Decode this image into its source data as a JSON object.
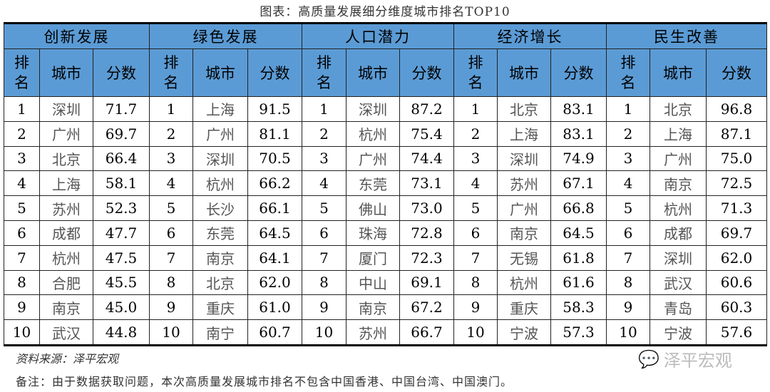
{
  "title": "图表：高质量发展细分维度城市排名TOP10",
  "sub_headers": {
    "rank": "排名",
    "city": "城市",
    "score": "分数"
  },
  "groups": [
    {
      "name": "创新发展",
      "rows": [
        [
          "1",
          "深圳",
          "71.7"
        ],
        [
          "2",
          "广州",
          "69.7"
        ],
        [
          "3",
          "北京",
          "66.4"
        ],
        [
          "4",
          "上海",
          "58.1"
        ],
        [
          "5",
          "苏州",
          "52.3"
        ],
        [
          "6",
          "成都",
          "47.7"
        ],
        [
          "7",
          "杭州",
          "47.5"
        ],
        [
          "8",
          "合肥",
          "45.5"
        ],
        [
          "9",
          "南京",
          "45.0"
        ],
        [
          "10",
          "武汉",
          "44.8"
        ]
      ]
    },
    {
      "name": "绿色发展",
      "rows": [
        [
          "1",
          "上海",
          "91.5"
        ],
        [
          "2",
          "广州",
          "81.1"
        ],
        [
          "3",
          "深圳",
          "70.5"
        ],
        [
          "4",
          "杭州",
          "66.2"
        ],
        [
          "5",
          "长沙",
          "66.1"
        ],
        [
          "6",
          "东莞",
          "64.5"
        ],
        [
          "7",
          "南京",
          "64.1"
        ],
        [
          "8",
          "北京",
          "62.0"
        ],
        [
          "9",
          "重庆",
          "61.0"
        ],
        [
          "10",
          "南宁",
          "60.7"
        ]
      ]
    },
    {
      "name": "人口潜力",
      "rows": [
        [
          "1",
          "深圳",
          "87.2"
        ],
        [
          "2",
          "杭州",
          "75.4"
        ],
        [
          "3",
          "广州",
          "74.4"
        ],
        [
          "4",
          "东莞",
          "73.1"
        ],
        [
          "5",
          "佛山",
          "73.0"
        ],
        [
          "6",
          "珠海",
          "72.8"
        ],
        [
          "7",
          "厦门",
          "72.3"
        ],
        [
          "8",
          "中山",
          "69.1"
        ],
        [
          "9",
          "南京",
          "67.2"
        ],
        [
          "10",
          "苏州",
          "66.7"
        ]
      ]
    },
    {
      "name": "经济增长",
      "rows": [
        [
          "1",
          "北京",
          "83.1"
        ],
        [
          "2",
          "上海",
          "83.1"
        ],
        [
          "3",
          "深圳",
          "74.9"
        ],
        [
          "4",
          "苏州",
          "67.1"
        ],
        [
          "5",
          "广州",
          "66.8"
        ],
        [
          "6",
          "南京",
          "64.5"
        ],
        [
          "7",
          "无锡",
          "61.8"
        ],
        [
          "8",
          "杭州",
          "61.6"
        ],
        [
          "9",
          "重庆",
          "58.3"
        ],
        [
          "10",
          "宁波",
          "57.3"
        ]
      ]
    },
    {
      "name": "民生改善",
      "rows": [
        [
          "1",
          "北京",
          "96.8"
        ],
        [
          "2",
          "上海",
          "87.1"
        ],
        [
          "3",
          "广州",
          "75.0"
        ],
        [
          "4",
          "南京",
          "72.5"
        ],
        [
          "5",
          "杭州",
          "71.3"
        ],
        [
          "6",
          "成都",
          "69.7"
        ],
        [
          "7",
          "深圳",
          "62.0"
        ],
        [
          "8",
          "武汉",
          "60.6"
        ],
        [
          "9",
          "青岛",
          "60.3"
        ],
        [
          "10",
          "宁波",
          "57.6"
        ]
      ]
    }
  ],
  "source": "资料来源：泽平宏观",
  "note": "备注：由于数据获取问题，本次高质量发展城市排名不包含中国香港、中国台湾、中国澳门。",
  "watermark": "泽平宏观",
  "colors": {
    "header_bg": "#5b9bd5"
  }
}
